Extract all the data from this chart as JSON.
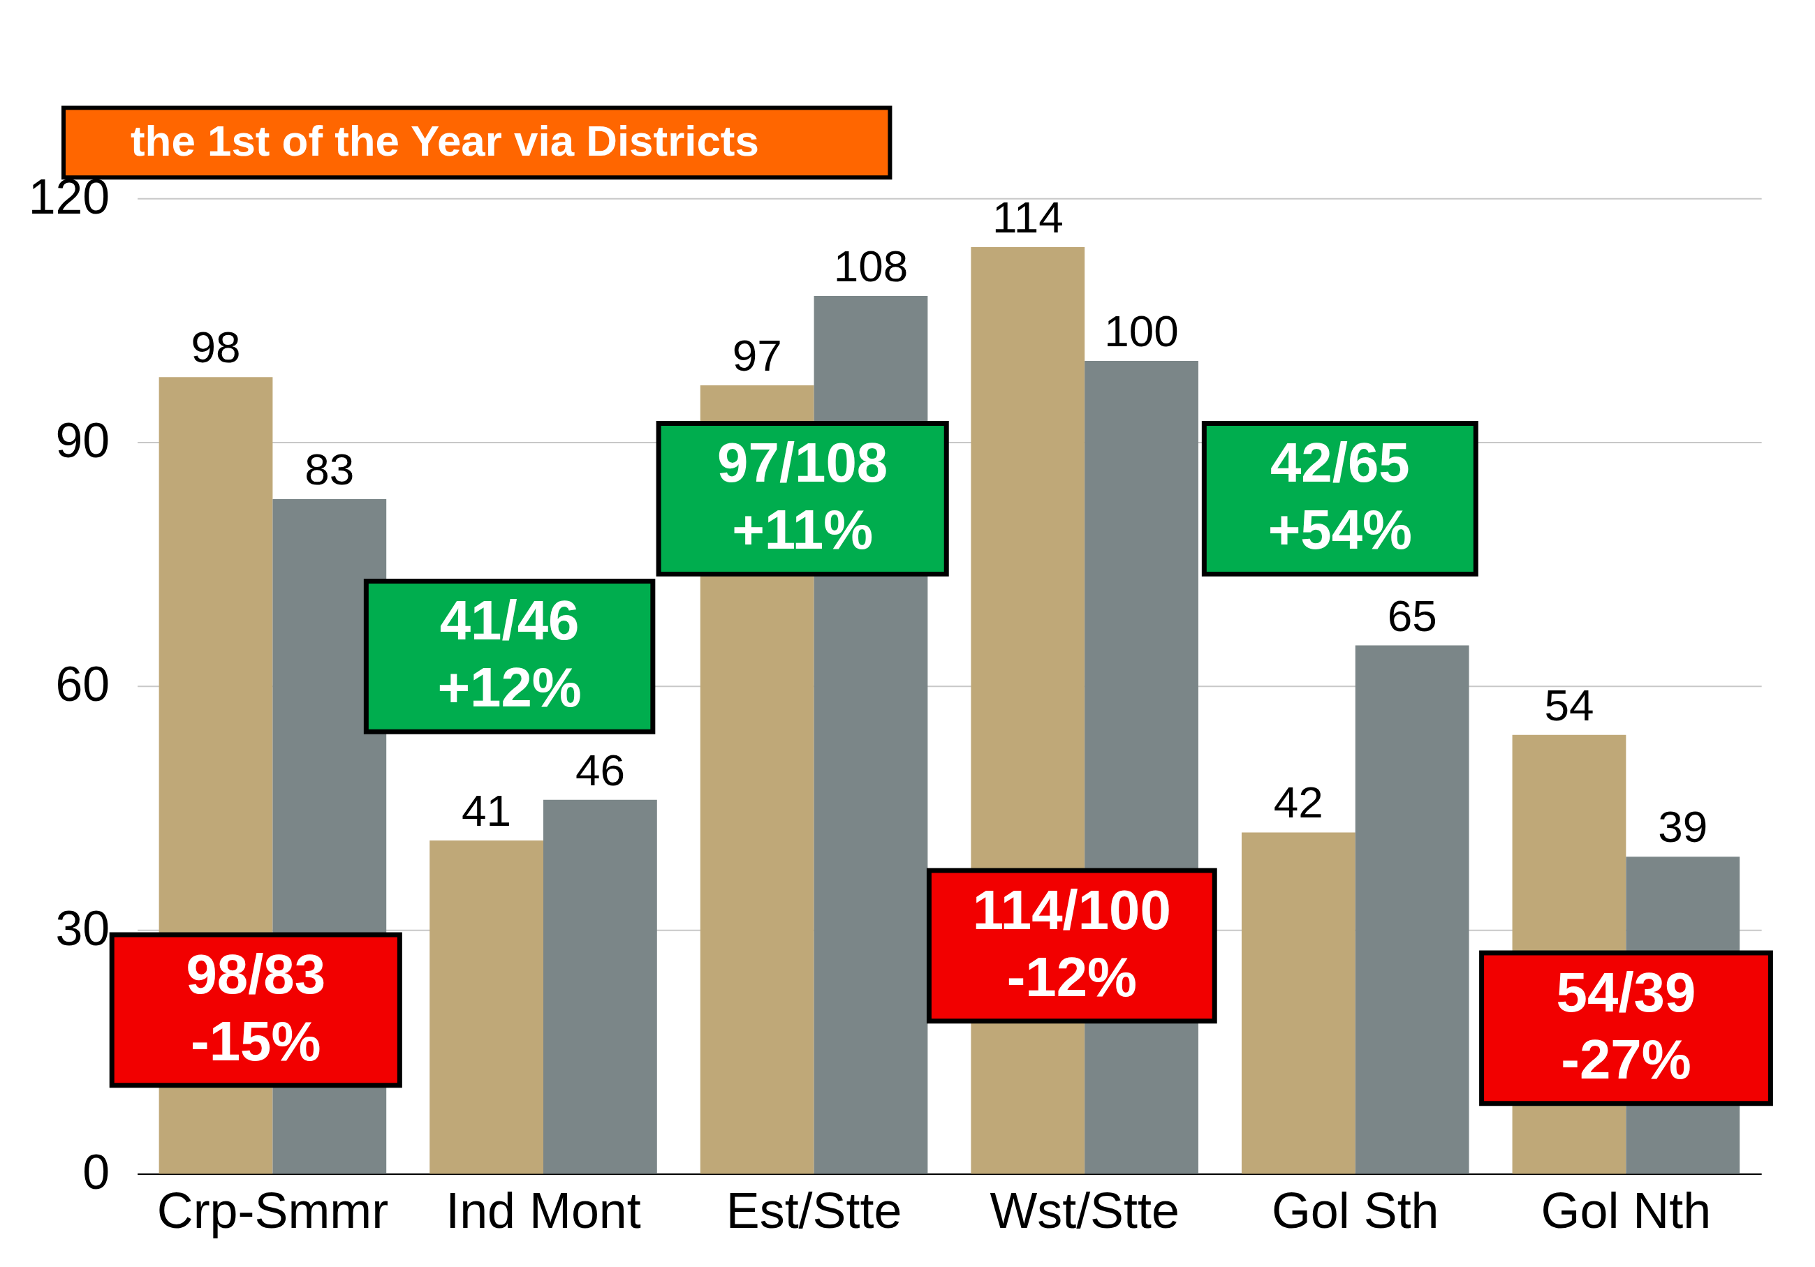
{
  "chart_data": {
    "type": "bar",
    "title": "the 1st of the Year via Districts",
    "categories": [
      "Crp-Smmr",
      "Ind Mont",
      "Est/Stte",
      "Wst/Stte",
      "Gol Sth",
      "Gol Nth"
    ],
    "series": [
      {
        "color": "#bfa878",
        "values": [
          98,
          41,
          97,
          114,
          42,
          54
        ]
      },
      {
        "color": "#7b8688",
        "values": [
          83,
          46,
          108,
          100,
          65,
          39
        ]
      }
    ],
    "ylim": [
      0,
      120
    ],
    "yticks": [
      0,
      30,
      60,
      90,
      120
    ],
    "grid": "y",
    "data_labels": true,
    "annotations": [
      "98/83\n-15%",
      "41/46\n+12%",
      "97/108\n+11%",
      "114/100\n-12%",
      "42/65\n+54%",
      "54/39\n-27%"
    ]
  }
}
